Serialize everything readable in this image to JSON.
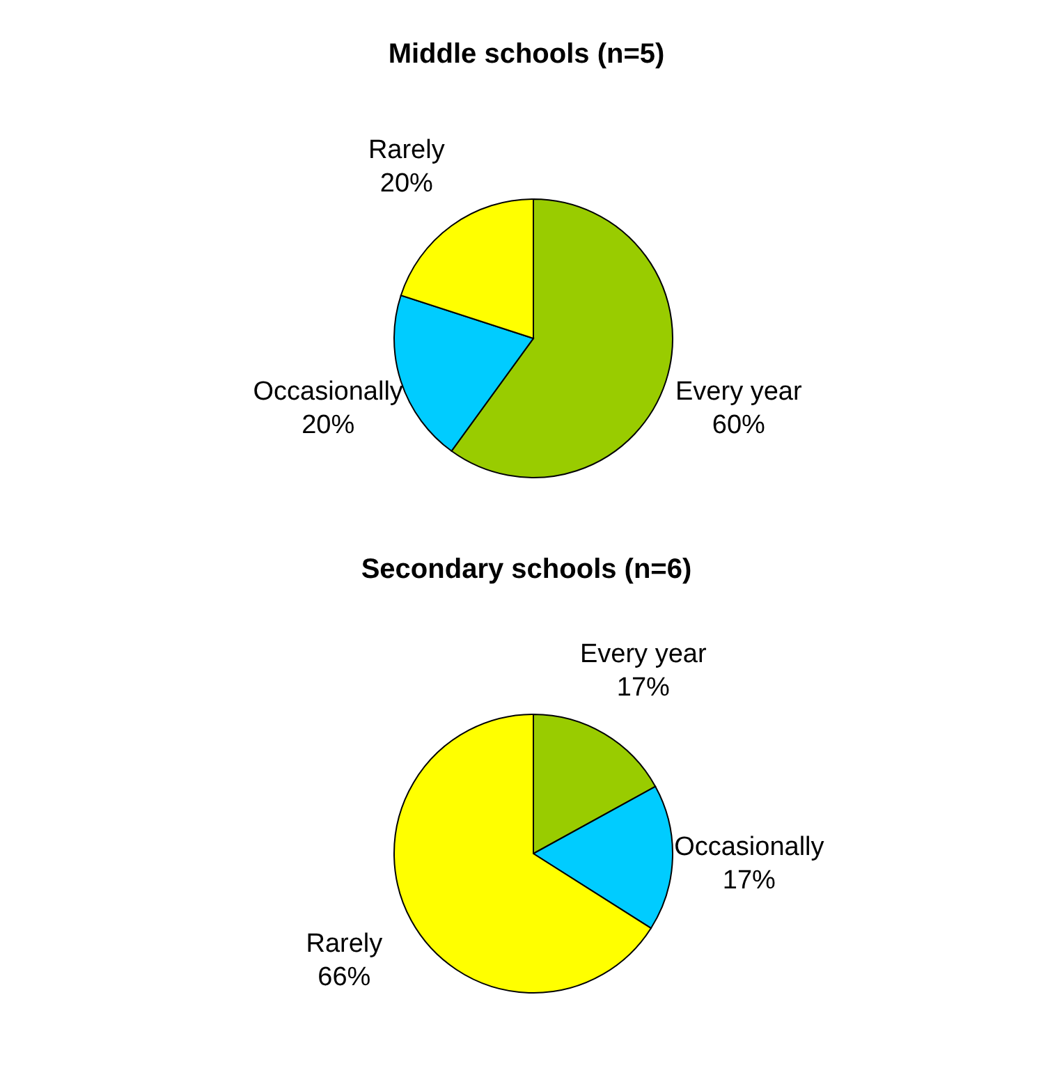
{
  "chart_data": [
    {
      "type": "pie",
      "title": "Middle schools (n=5)",
      "categories": [
        "Every year",
        "Occasionally",
        "Rarely"
      ],
      "values": [
        60,
        20,
        20
      ],
      "value_labels": [
        "60%",
        "20%",
        "20%"
      ],
      "colors": [
        "#99cc00",
        "#00ccff",
        "#ffff00"
      ]
    },
    {
      "type": "pie",
      "title": "Secondary schools (n=6)",
      "categories": [
        "Every year",
        "Occasionally",
        "Rarely"
      ],
      "values": [
        17,
        17,
        66
      ],
      "value_labels": [
        "17%",
        "17%",
        "66%"
      ],
      "colors": [
        "#99cc00",
        "#00ccff",
        "#ffff00"
      ]
    }
  ]
}
